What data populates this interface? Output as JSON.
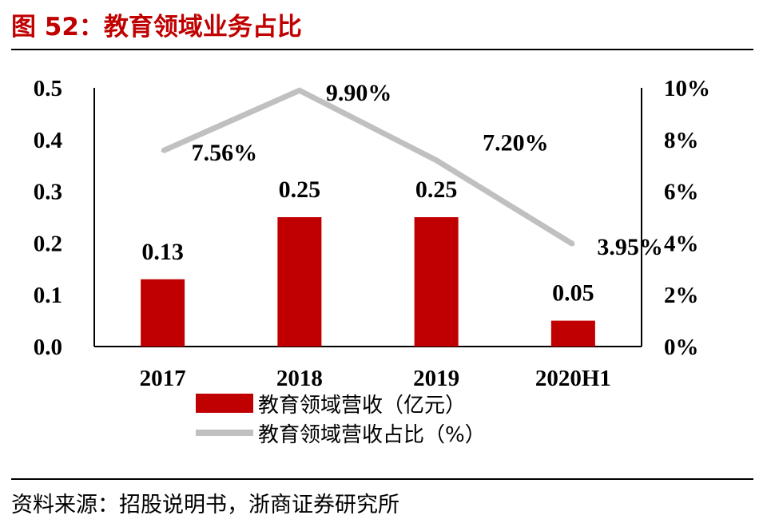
{
  "header": {
    "title": "图 52：教育领域业务占比"
  },
  "footer": {
    "source": "资料来源：招股说明书，浙商证券研究所"
  },
  "chart_data": {
    "type": "bar",
    "categories": [
      "2017",
      "2018",
      "2019",
      "2020H1"
    ],
    "series": [
      {
        "name": "教育领域营收（亿元）",
        "type": "bar",
        "axis": "left",
        "values": [
          0.13,
          0.25,
          0.25,
          0.05
        ],
        "labels": [
          "0.13",
          "0.25",
          "0.25",
          "0.05"
        ],
        "color": "#c00000"
      },
      {
        "name": "教育领域营收占比（%）",
        "type": "line",
        "axis": "right",
        "values": [
          7.56,
          9.9,
          7.2,
          3.95
        ],
        "labels": [
          "7.56%",
          "9.90%",
          "7.20%",
          "3.95%"
        ],
        "color": "#c0c0c0"
      }
    ],
    "left_axis": {
      "min": 0,
      "max": 0.5,
      "ticks": [
        "0.0",
        "0.1",
        "0.2",
        "0.3",
        "0.4",
        "0.5"
      ]
    },
    "right_axis": {
      "min": 0,
      "max": 10,
      "ticks": [
        "0%",
        "2%",
        "4%",
        "6%",
        "8%",
        "10%"
      ]
    },
    "grid": false,
    "legend": "bottom"
  }
}
